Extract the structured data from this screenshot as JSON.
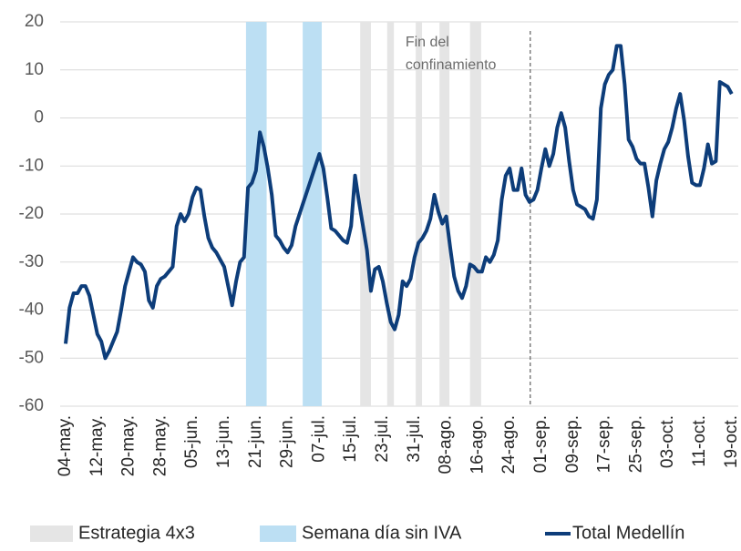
{
  "chart_data": {
    "type": "line",
    "categories": [
      "04-may.",
      null,
      null,
      null,
      null,
      null,
      null,
      null,
      "12-may.",
      null,
      null,
      null,
      null,
      null,
      null,
      null,
      "20-may.",
      null,
      null,
      null,
      null,
      null,
      null,
      null,
      "28-may.",
      null,
      null,
      null,
      null,
      null,
      null,
      null,
      "05-jun.",
      null,
      null,
      null,
      null,
      null,
      null,
      null,
      "13-jun.",
      null,
      null,
      null,
      null,
      null,
      null,
      null,
      "21-jun.",
      null,
      null,
      null,
      null,
      null,
      null,
      null,
      "29-jun.",
      null,
      null,
      null,
      null,
      null,
      null,
      null,
      "07-jul.",
      null,
      null,
      null,
      null,
      null,
      null,
      null,
      "15-jul.",
      null,
      null,
      null,
      null,
      null,
      null,
      null,
      "23-jul.",
      null,
      null,
      null,
      null,
      null,
      null,
      null,
      "31-jul.",
      null,
      null,
      null,
      null,
      null,
      null,
      null,
      "08-ago.",
      null,
      null,
      null,
      null,
      null,
      null,
      null,
      "16-ago.",
      null,
      null,
      null,
      null,
      null,
      null,
      null,
      "24-ago.",
      null,
      null,
      null,
      null,
      null,
      null,
      null,
      "01-sep.",
      null,
      null,
      null,
      null,
      null,
      null,
      null,
      "09-sep.",
      null,
      null,
      null,
      null,
      null,
      null,
      null,
      "17-sep.",
      null,
      null,
      null,
      null,
      null,
      null,
      null,
      "25-sep.",
      null,
      null,
      null,
      null,
      null,
      null,
      null,
      "03-oct.",
      null,
      null,
      null,
      null,
      null,
      null,
      null,
      "11-oct.",
      null,
      null,
      null,
      null,
      null,
      null,
      null,
      "19-oct."
    ],
    "series": [
      {
        "name": "Total Medellín",
        "color": "#0d3d7a",
        "values": [
          -47,
          -39.5,
          -36.5,
          -36.5,
          -35,
          -35,
          -37,
          -41,
          -45,
          -46.5,
          -50,
          -48.5,
          -46.5,
          -44.5,
          -40,
          -35,
          -32,
          -29,
          -30,
          -30.5,
          -32,
          -38,
          -39.5,
          -35,
          -33.5,
          -33,
          -32,
          -31,
          -22.5,
          -20,
          -21.5,
          -20,
          -16.5,
          -14.5,
          -15,
          -20.5,
          -25,
          -27,
          -28,
          -29.5,
          -31,
          -35,
          -39,
          -34,
          -30,
          -29,
          -14.5,
          -13.5,
          -11,
          -3,
          -6,
          -10.5,
          -16,
          -24.5,
          -25.5,
          -27,
          -28,
          -26.5,
          -22.5,
          -20,
          -17.5,
          -15,
          -12.5,
          -10,
          -7.5,
          -10.5,
          -16.5,
          -23,
          -23.5,
          -24.5,
          -25.5,
          -26,
          -22.5,
          -12,
          -17.5,
          -22.5,
          -27.5,
          -36,
          -31.5,
          -31,
          -34,
          -38.5,
          -42.5,
          -44,
          -41,
          -34,
          -35,
          -33.5,
          -29,
          -26,
          -25,
          -23.5,
          -21,
          -16,
          -19.5,
          -22,
          -20.5,
          -27,
          -33,
          -36,
          -37.5,
          -35,
          -30.5,
          -31,
          -32,
          -32,
          -29,
          -30,
          -28.5,
          -25.5,
          -17,
          -12,
          -10.5,
          -15,
          -15,
          -10.5,
          -16,
          -17.5,
          -17,
          -15,
          -10.5,
          -6.5,
          -10,
          -7.5,
          -2,
          1,
          -2,
          -9,
          -15,
          -18,
          -18.5,
          -19,
          -20.5,
          -21,
          -17,
          2,
          7,
          9,
          10,
          15,
          15,
          7,
          -4.5,
          -6,
          -8.5,
          -9.5,
          -9.5,
          -14.5,
          -20.5,
          -13,
          -9.5,
          -6.5,
          -5,
          -2,
          2,
          5,
          -0.5,
          -8,
          -13.5,
          -14,
          -14,
          -10.5,
          -5.5,
          -9.5,
          -9,
          7.5,
          7,
          6.5,
          5
        ]
      }
    ],
    "bands": [
      {
        "name": "Estrategia 4x3",
        "color": "#e5e5e5",
        "ranges": [
          [
            74.3,
            77
          ],
          [
            81.1,
            82.8
          ],
          [
            88.3,
            89.9
          ],
          [
            94.3,
            96.8
          ],
          [
            102,
            104.8
          ]
        ]
      },
      {
        "name": "Semana día sin IVA",
        "color": "#bcdff3",
        "ranges": [
          [
            45.5,
            50.7
          ],
          [
            59.8,
            64.6
          ]
        ]
      }
    ],
    "annotation": {
      "lines": [
        "Fin del",
        "confinamiento"
      ],
      "x": 117.2
    },
    "ylim": [
      -60,
      20
    ],
    "yticks": [
      20,
      10,
      0,
      -10,
      -20,
      -30,
      -40,
      -50,
      -60
    ],
    "grid": true
  }
}
